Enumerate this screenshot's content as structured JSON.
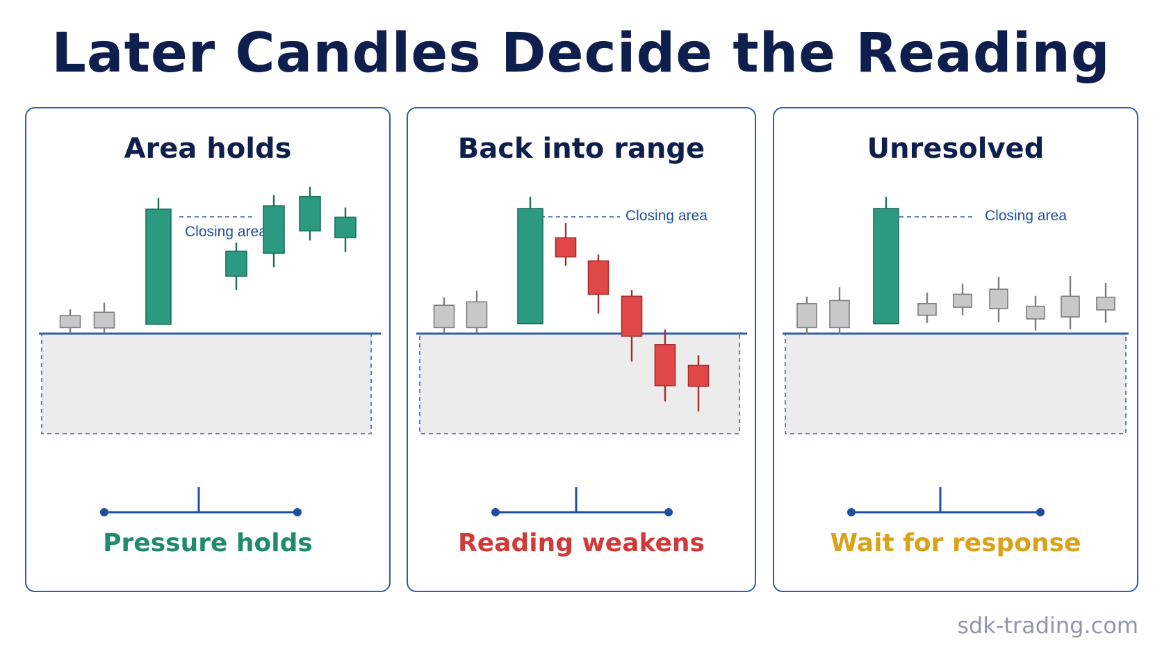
{
  "title": "Later Candles Decide the Reading",
  "watermark": "sdk-trading.com",
  "colors": {
    "navy": "#0f1f4d",
    "frame": "#2f5ea8",
    "bull": "#2b9a80",
    "bull_edge": "#1c6e5b",
    "bear": "#e04848",
    "bear_edge": "#a82a2a",
    "neutral": "#c8c8c8",
    "neutral_edge": "#7d7d7d",
    "zone_fill": "#ececec",
    "hold": "#1f8a6e",
    "weaken": "#d03a3a",
    "wait": "#d9a21b"
  },
  "panels": [
    {
      "title": "Area holds",
      "annotation": "Closing area",
      "outcome": "Pressure holds",
      "outcome_color": "#1f8a6e",
      "candles": [
        {
          "kind": "neutral",
          "open": 3.6,
          "close": 10.8,
          "high": 14.6,
          "low": 0.0
        },
        {
          "kind": "neutral",
          "open": 3.4,
          "close": 12.8,
          "high": 18.6,
          "low": 0.0
        },
        {
          "kind": "bull",
          "open": 5.6,
          "close": 74.6,
          "high": 81.2,
          "low": 5.6
        },
        {
          "kind": "bull",
          "open": 34.4,
          "close": 49.4,
          "high": 54.6,
          "low": 26.2
        },
        {
          "kind": "bull",
          "open": 48.2,
          "close": 76.6,
          "high": 83.0,
          "low": 39.8
        },
        {
          "kind": "bull",
          "open": 61.6,
          "close": 82.2,
          "high": 88.0,
          "low": 55.8
        },
        {
          "kind": "bull",
          "open": 57.6,
          "close": 69.8,
          "high": 75.6,
          "low": 48.8
        }
      ]
    },
    {
      "title": "Back into range",
      "annotation": "Closing area",
      "outcome": "Reading weakens",
      "outcome_color": "#d03a3a",
      "candles": [
        {
          "kind": "neutral",
          "open": 3.6,
          "close": 17.0,
          "high": 21.6,
          "low": 0.0
        },
        {
          "kind": "neutral",
          "open": 3.6,
          "close": 19.0,
          "high": 25.8,
          "low": 0.0
        },
        {
          "kind": "bull",
          "open": 6.0,
          "close": 75.0,
          "high": 82.0,
          "low": 6.0
        },
        {
          "kind": "bear",
          "open": 57.4,
          "close": 46.0,
          "high": 66.2,
          "low": 40.6
        },
        {
          "kind": "bear",
          "open": 43.6,
          "close": 23.6,
          "high": 47.4,
          "low": 12.0
        },
        {
          "kind": "bear",
          "open": 22.4,
          "close": -1.6,
          "high": 26.2,
          "low": -16.8
        },
        {
          "kind": "bear",
          "open": -6.6,
          "close": -31.2,
          "high": 2.4,
          "low": -40.6
        },
        {
          "kind": "bear",
          "open": -19.0,
          "close": -31.6,
          "high": -13.0,
          "low": -46.6
        }
      ]
    },
    {
      "title": "Unresolved",
      "annotation": "Closing area",
      "outcome": "Wait for response",
      "outcome_color": "#d9a21b",
      "candles": [
        {
          "kind": "neutral",
          "open": 3.6,
          "close": 18.0,
          "high": 22.2,
          "low": -0.6
        },
        {
          "kind": "neutral",
          "open": 3.6,
          "close": 19.8,
          "high": 27.8,
          "low": -0.6
        },
        {
          "kind": "bull",
          "open": 6.0,
          "close": 75.0,
          "high": 82.0,
          "low": 6.0
        },
        {
          "kind": "neutral",
          "open": 11.0,
          "close": 18.0,
          "high": 24.6,
          "low": 6.4
        },
        {
          "kind": "neutral",
          "open": 15.8,
          "close": 23.6,
          "high": 30.0,
          "low": 11.0
        },
        {
          "kind": "neutral",
          "open": 15.0,
          "close": 26.6,
          "high": 34.0,
          "low": 7.0
        },
        {
          "kind": "neutral",
          "open": 8.8,
          "close": 16.4,
          "high": 22.6,
          "low": 1.8
        },
        {
          "kind": "neutral",
          "open": 10.0,
          "close": 22.4,
          "high": 34.6,
          "low": 2.6
        },
        {
          "kind": "neutral",
          "open": 14.2,
          "close": 21.8,
          "high": 30.4,
          "low": 6.4
        }
      ]
    }
  ]
}
